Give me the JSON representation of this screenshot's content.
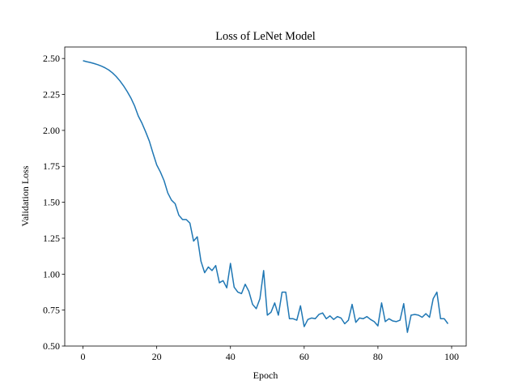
{
  "chart_data": {
    "type": "line",
    "title": "Loss of LeNet Model",
    "x_label": "Epoch",
    "y_label": "Validation Loss",
    "x": [
      0,
      1,
      2,
      3,
      4,
      5,
      6,
      7,
      8,
      9,
      10,
      11,
      12,
      13,
      14,
      15,
      16,
      17,
      18,
      19,
      20,
      21,
      22,
      23,
      24,
      25,
      26,
      27,
      28,
      29,
      30,
      31,
      32,
      33,
      34,
      35,
      36,
      37,
      38,
      39,
      40,
      41,
      42,
      43,
      44,
      45,
      46,
      47,
      48,
      49,
      50,
      51,
      52,
      53,
      54,
      55,
      56,
      57,
      58,
      59,
      60,
      61,
      62,
      63,
      64,
      65,
      66,
      67,
      68,
      69,
      70,
      71,
      72,
      73,
      74,
      75,
      76,
      77,
      78,
      79,
      80,
      81,
      82,
      83,
      84,
      85,
      86,
      87,
      88,
      89,
      90,
      91,
      92,
      93,
      94,
      95,
      96,
      97,
      98,
      99
    ],
    "series": [
      {
        "name": "Validation Loss",
        "color": "#1f77b4",
        "values": [
          2.485,
          2.478,
          2.472,
          2.465,
          2.457,
          2.447,
          2.435,
          2.42,
          2.4,
          2.375,
          2.345,
          2.31,
          2.27,
          2.225,
          2.17,
          2.1,
          2.05,
          1.99,
          1.925,
          1.84,
          1.76,
          1.71,
          1.65,
          1.565,
          1.515,
          1.49,
          1.41,
          1.38,
          1.38,
          1.355,
          1.23,
          1.26,
          1.09,
          1.01,
          1.05,
          1.025,
          1.06,
          0.94,
          0.955,
          0.905,
          1.075,
          0.91,
          0.875,
          0.865,
          0.93,
          0.88,
          0.79,
          0.76,
          0.83,
          1.025,
          0.715,
          0.735,
          0.8,
          0.715,
          0.875,
          0.875,
          0.69,
          0.69,
          0.68,
          0.78,
          0.635,
          0.685,
          0.695,
          0.69,
          0.72,
          0.73,
          0.69,
          0.71,
          0.685,
          0.705,
          0.695,
          0.655,
          0.68,
          0.79,
          0.665,
          0.695,
          0.69,
          0.705,
          0.685,
          0.67,
          0.64,
          0.8,
          0.67,
          0.69,
          0.675,
          0.67,
          0.68,
          0.795,
          0.595,
          0.715,
          0.72,
          0.715,
          0.7,
          0.725,
          0.7,
          0.83,
          0.875,
          0.69,
          0.69,
          0.655
        ]
      }
    ],
    "xlim": [
      -4.95,
      103.95
    ],
    "ylim": [
      0.5,
      2.58
    ],
    "xticks": [
      0,
      20,
      40,
      60,
      80,
      100
    ],
    "yticks": [
      {
        "value": 0.5,
        "label": "0.50"
      },
      {
        "value": 0.75,
        "label": "0.75"
      },
      {
        "value": 1,
        "label": "1.00"
      },
      {
        "value": 1.25,
        "label": "1.25"
      },
      {
        "value": 1.5,
        "label": "1.50"
      },
      {
        "value": 1.75,
        "label": "1.75"
      },
      {
        "value": 2,
        "label": "2.00"
      },
      {
        "value": 2.25,
        "label": "2.25"
      },
      {
        "value": 2.5,
        "label": "2.50"
      }
    ]
  }
}
